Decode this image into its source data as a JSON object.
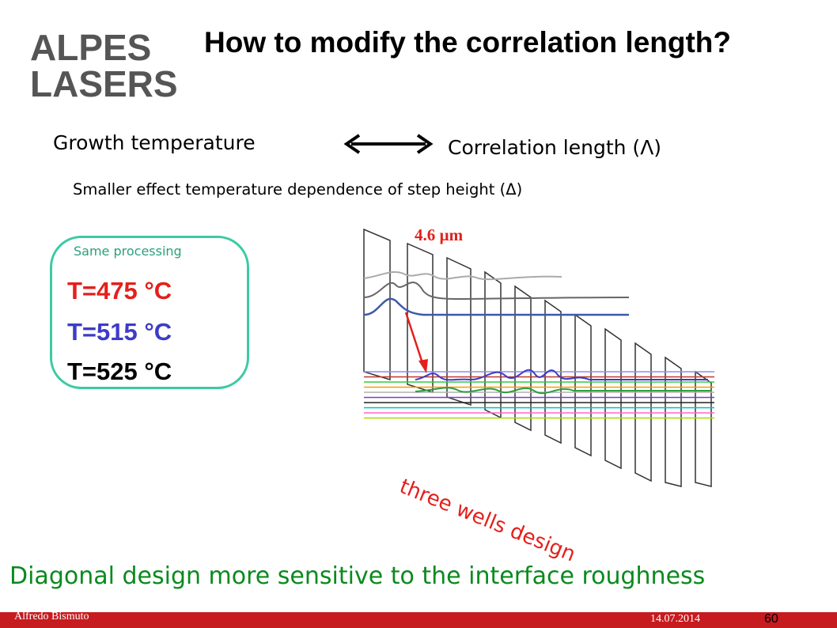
{
  "logo": {
    "line1": "ALPES",
    "line2": "LASERS",
    "colors": {
      "text": "#555555",
      "accent": "#c61b1f"
    }
  },
  "title": "How to modify the correlation length?",
  "relation": {
    "left": "Growth temperature",
    "right": "Correlation length (Λ)",
    "note": "Smaller effect temperature dependence of step height (Δ)"
  },
  "temperatures": {
    "caption": "Same processing",
    "items": [
      {
        "label": "T=475 °C",
        "color": "#e3201c"
      },
      {
        "label": "T=515 °C",
        "color": "#3d3bc7"
      },
      {
        "label": "T=525 °C",
        "color": "#000000"
      }
    ]
  },
  "diagram": {
    "wavelength_label": "4.6 µm",
    "design_label": "three wells design",
    "arrow_icon": "red-arrow-icon",
    "level_colors": [
      "#8b8bff",
      "#c0392b",
      "#2ecc40",
      "#ff9900",
      "#b0b0b0",
      "#7f3fbf",
      "#222222",
      "#00c0c0",
      "#ff66cc",
      "#a0e000"
    ]
  },
  "bottom_text": "Diagonal design more sensitive to the interface roughness",
  "footer": {
    "author": "Alfredo Bismuto",
    "date": "14.07.2014",
    "page": "60"
  }
}
